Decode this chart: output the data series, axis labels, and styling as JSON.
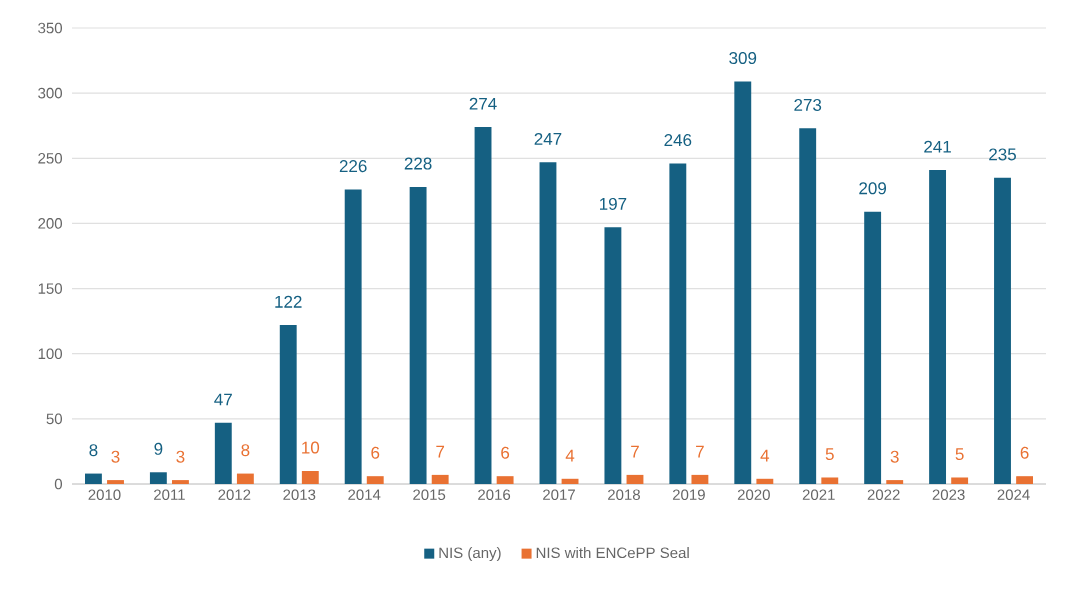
{
  "chart_data": {
    "type": "bar",
    "categories": [
      "2010",
      "2011",
      "2012",
      "2013",
      "2014",
      "2015",
      "2016",
      "2017",
      "2018",
      "2019",
      "2020",
      "2021",
      "2022",
      "2023",
      "2024"
    ],
    "series": [
      {
        "name": "NIS (any)",
        "color": "#156082",
        "values": [
          8,
          9,
          47,
          122,
          226,
          228,
          274,
          247,
          197,
          246,
          309,
          273,
          209,
          241,
          235
        ]
      },
      {
        "name": "NIS with ENCePP Seal",
        "color": "#e97132",
        "values": [
          3,
          3,
          8,
          10,
          6,
          7,
          6,
          4,
          7,
          7,
          4,
          5,
          3,
          5,
          6
        ]
      }
    ],
    "ylim": [
      0,
      350
    ],
    "yticks": [
      0,
      50,
      100,
      150,
      200,
      250,
      300,
      350
    ],
    "grid": "y",
    "legend": "bottom",
    "data_labels": true
  }
}
